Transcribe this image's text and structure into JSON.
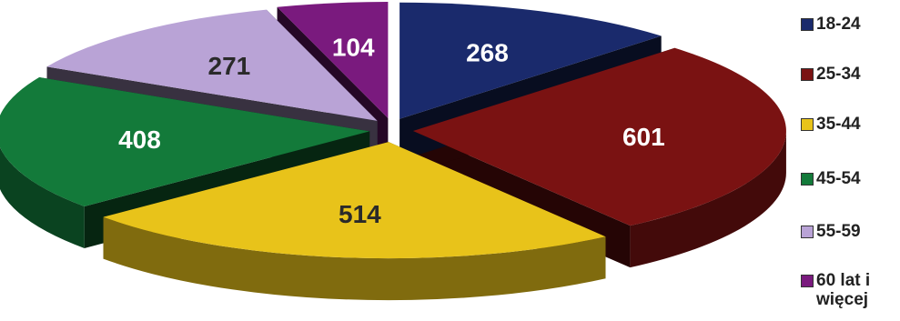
{
  "chart_data": {
    "type": "pie",
    "categories": [
      "18-24",
      "25-34",
      "35-44",
      "45-54",
      "55-59",
      "60 lat i więcej"
    ],
    "values": [
      268,
      601,
      514,
      408,
      271,
      104
    ],
    "colors": [
      "#1a2a6c",
      "#7a1212",
      "#e8c31a",
      "#137a3a",
      "#b9a3d6",
      "#7a1a7e"
    ],
    "legend_position": "right",
    "style": "3d-exploded",
    "title": ""
  },
  "legend": [
    {
      "label": "18-24",
      "color": "#1a2a6c"
    },
    {
      "label": "25-34",
      "color": "#7a1212"
    },
    {
      "label": "35-44",
      "color": "#e8c31a"
    },
    {
      "label": "45-54",
      "color": "#137a3a"
    },
    {
      "label": "55-59",
      "color": "#b9a3d6"
    },
    {
      "label": "60 lat i więcej",
      "color": "#7a1a7e"
    }
  ]
}
